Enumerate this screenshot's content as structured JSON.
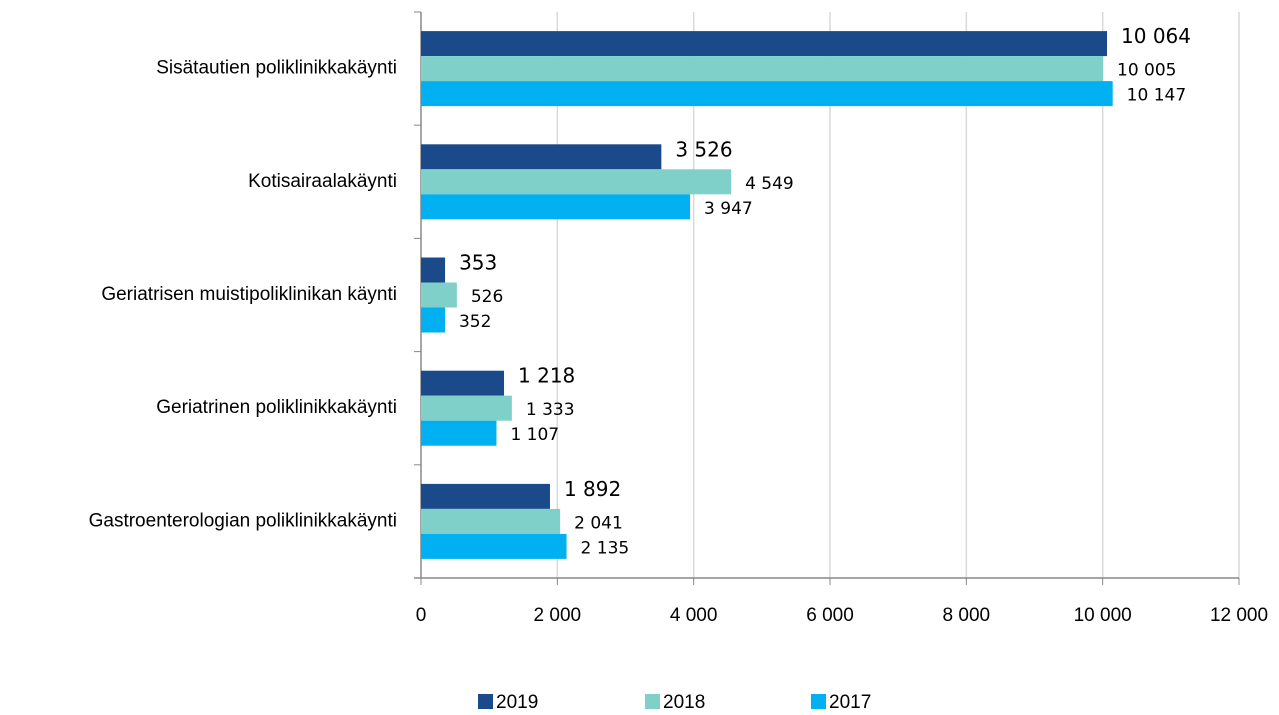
{
  "chart_data": {
    "type": "barh",
    "categories": [
      "Sisätautien poliklinikkakäynti",
      "Kotisairaalakäynti",
      "Geriatrisen muistipoliklinikan käynti",
      "Geriatrinen poliklinikkakäynti",
      "Gastroenterologian poliklinikkakäynti"
    ],
    "series": [
      {
        "name": "2019",
        "color": "#1b4a8a",
        "values": [
          10064,
          3526,
          353,
          1218,
          1892
        ],
        "value_labels": [
          "10 064",
          "3 526",
          "353",
          "1 218",
          "1 892"
        ]
      },
      {
        "name": "2018",
        "color": "#7fd0c8",
        "values": [
          10005,
          4549,
          526,
          1333,
          2041
        ],
        "value_labels": [
          "10 005",
          "4 549",
          "526",
          "1 333",
          "2 041"
        ]
      },
      {
        "name": "2017",
        "color": "#00b0f0",
        "values": [
          10147,
          3947,
          352,
          1107,
          2135
        ],
        "value_labels": [
          "10 147",
          "3 947",
          "352",
          "1 107",
          "2 135"
        ]
      }
    ],
    "xlim": [
      0,
      12000
    ],
    "xticks": [
      0,
      {
        "value": 2000,
        "label": "2 000"
      },
      {
        "value": 4000,
        "label": "4 000"
      },
      {
        "value": 6000,
        "label": "6 000"
      },
      {
        "value": 8000,
        "label": "8 000"
      },
      {
        "value": 10000,
        "label": "10 000"
      },
      {
        "value": 12000,
        "label": "12 000"
      }
    ],
    "grid": true,
    "legend": "bottom"
  }
}
